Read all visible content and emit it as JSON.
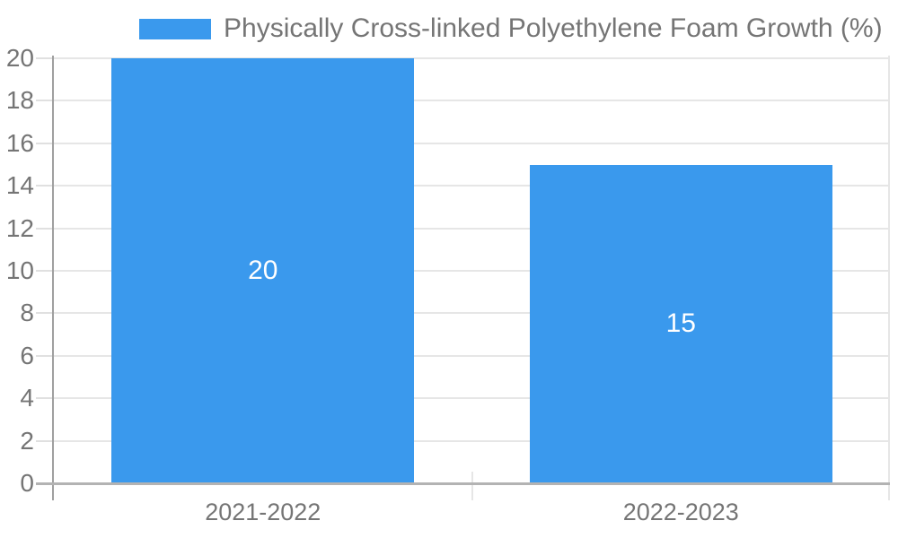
{
  "chart_data": {
    "type": "bar",
    "title": "",
    "legend": "Physically Cross-linked Polyethylene Foam Growth (%)",
    "legend_position": "top",
    "categories": [
      "2021-2022",
      "2022-2023"
    ],
    "values": [
      20,
      15
    ],
    "bar_value_labels": [
      "20",
      "15"
    ],
    "xlabel": "",
    "ylabel": "",
    "ylim": [
      0,
      20
    ],
    "ytick_step": 2,
    "yticks": [
      0,
      2,
      4,
      6,
      8,
      10,
      12,
      14,
      16,
      18,
      20
    ],
    "grid": true
  },
  "colors": {
    "bar": "#3A99ED",
    "grid": "#E6E6E6",
    "tick": "#E0E0E0",
    "axis_left": "#A0A0A0",
    "axis_bottom": "#B3B3B3",
    "text": "#757575",
    "bar_label": "#FFFFFF",
    "background": "#FFFFFF"
  }
}
